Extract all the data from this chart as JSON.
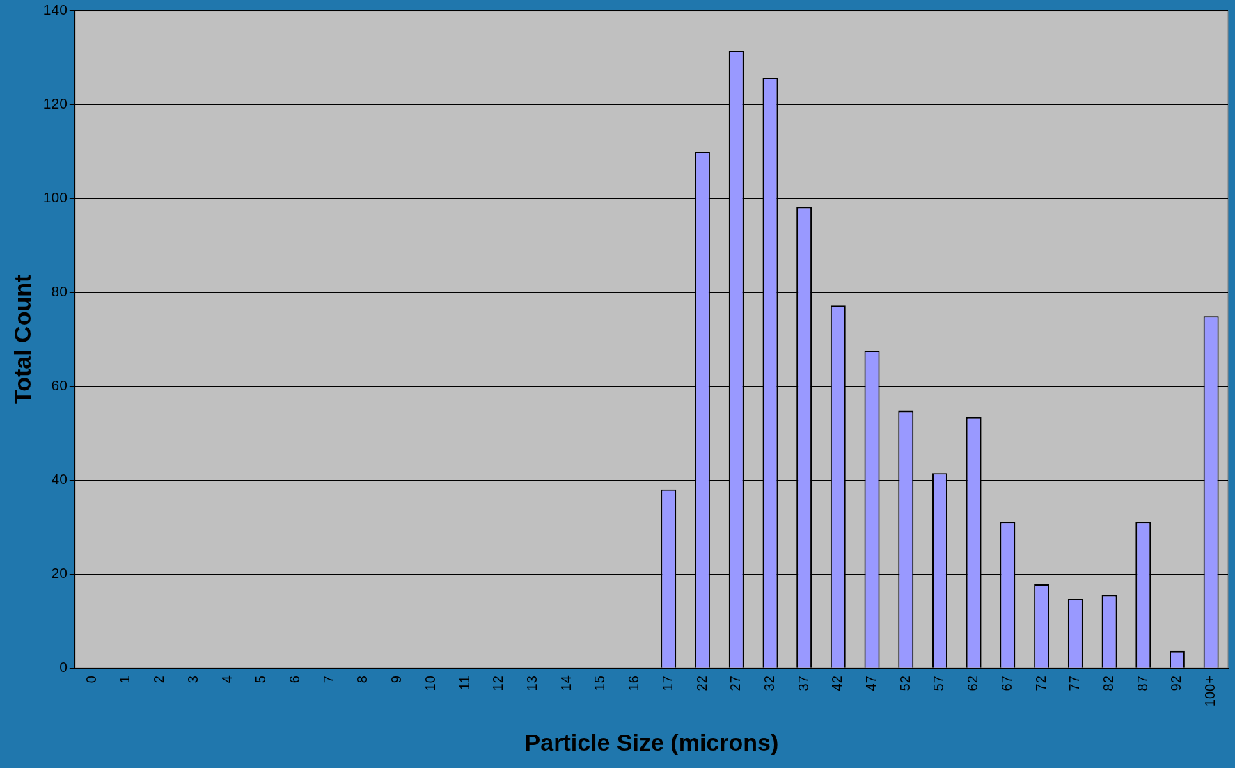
{
  "chart_data": {
    "type": "bar",
    "xlabel": "Particle Size (microns)",
    "ylabel": "Total Count",
    "categories": [
      "0",
      "1",
      "2",
      "3",
      "4",
      "5",
      "6",
      "7",
      "8",
      "9",
      "10",
      "11",
      "12",
      "13",
      "14",
      "15",
      "16",
      "17",
      "22",
      "27",
      "32",
      "37",
      "42",
      "47",
      "52",
      "57",
      "62",
      "67",
      "72",
      "77",
      "82",
      "87",
      "92",
      "100+"
    ],
    "values": [
      0,
      0,
      0,
      0,
      0,
      0,
      0,
      0,
      0,
      0,
      0,
      0,
      0,
      0,
      0,
      0,
      0,
      38,
      110,
      131.5,
      125.7,
      98.2,
      77.2,
      67.6,
      54.8,
      41.5,
      53.4,
      31.1,
      17.8,
      14.7,
      15.5,
      31.1,
      3.6,
      75
    ],
    "color": "#9999ff",
    "ylim": [
      0,
      140
    ],
    "yticks": [
      0,
      20,
      40,
      60,
      80,
      100,
      120,
      140
    ],
    "grid": "y",
    "legend": false
  }
}
